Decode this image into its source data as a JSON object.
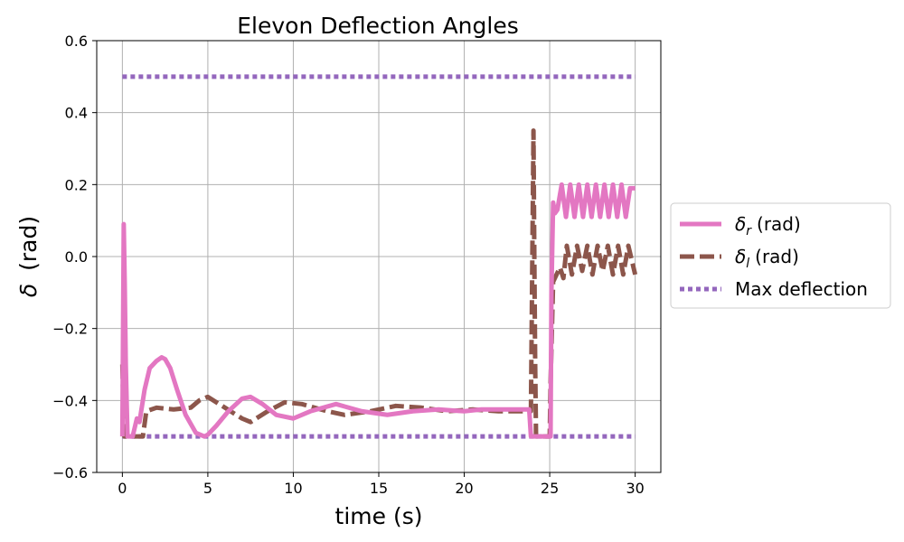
{
  "chart_data": {
    "type": "line",
    "title": "Elevon Deflection Angles",
    "xlabel": "time (s)",
    "ylabel_symbol": "δ",
    "ylabel_unit": "(rad)",
    "xlim": [
      -1.5,
      31.5
    ],
    "ylim": [
      -0.6,
      0.6
    ],
    "x_ticks": [
      0,
      5,
      10,
      15,
      20,
      25,
      30
    ],
    "y_ticks": [
      -0.6,
      -0.4,
      -0.2,
      0.0,
      0.2,
      0.4,
      0.6
    ],
    "x_tick_labels": [
      "0",
      "5",
      "10",
      "15",
      "20",
      "25",
      "30"
    ],
    "y_tick_labels": [
      "−0.6",
      "−0.4",
      "−0.2",
      "0.0",
      "0.2",
      "0.4",
      "0.6"
    ],
    "grid": true,
    "legend_position": "outside-right",
    "series": [
      {
        "symbol": "δ",
        "subscript": "r",
        "unit": "(rad)",
        "style": "solid",
        "color": "#e377c2",
        "x": [
          0.0,
          0.08,
          0.14,
          0.2,
          0.3,
          0.45,
          0.6,
          0.75,
          0.85,
          1.0,
          1.1,
          1.3,
          1.6,
          2.0,
          2.3,
          2.5,
          2.8,
          3.2,
          3.7,
          4.3,
          4.8,
          5.0,
          5.5,
          6.2,
          7.0,
          7.5,
          8.2,
          9.0,
          10.0,
          11.0,
          12.5,
          14.0,
          15.5,
          17.0,
          18.5,
          20.0,
          21.0,
          22.5,
          23.8,
          23.9,
          24.0,
          24.2,
          25.05,
          25.1,
          25.2,
          25.3,
          25.45,
          25.7,
          25.95,
          26.2,
          26.45,
          26.7,
          26.95,
          27.2,
          27.45,
          27.7,
          27.95,
          28.2,
          28.45,
          28.7,
          28.95,
          29.2,
          29.45,
          29.7,
          30.0
        ],
        "y": [
          -0.5,
          0.09,
          -0.08,
          -0.3,
          -0.5,
          -0.5,
          -0.5,
          -0.47,
          -0.45,
          -0.46,
          -0.43,
          -0.37,
          -0.31,
          -0.29,
          -0.28,
          -0.285,
          -0.31,
          -0.37,
          -0.44,
          -0.49,
          -0.5,
          -0.495,
          -0.47,
          -0.43,
          -0.395,
          -0.39,
          -0.41,
          -0.44,
          -0.45,
          -0.43,
          -0.41,
          -0.43,
          -0.44,
          -0.43,
          -0.425,
          -0.43,
          -0.425,
          -0.425,
          -0.425,
          -0.5,
          -0.5,
          -0.5,
          -0.5,
          -0.1,
          0.15,
          0.12,
          0.13,
          0.2,
          0.11,
          0.2,
          0.11,
          0.2,
          0.11,
          0.2,
          0.11,
          0.2,
          0.11,
          0.2,
          0.11,
          0.2,
          0.11,
          0.2,
          0.11,
          0.19,
          0.19
        ]
      },
      {
        "symbol": "δ",
        "subscript": "l",
        "unit": "(rad)",
        "style": "dashed",
        "color": "#8c564b",
        "x": [
          0.0,
          0.05,
          0.12,
          0.2,
          0.5,
          1.0,
          1.2,
          1.4,
          2.0,
          3.0,
          4.0,
          4.5,
          5.0,
          6.0,
          7.0,
          7.5,
          8.5,
          9.5,
          10.5,
          12.0,
          13.0,
          14.5,
          16.0,
          17.5,
          19.0,
          20.5,
          22.0,
          23.5,
          23.9,
          24.05,
          24.1,
          24.15,
          24.2,
          24.3,
          25.0,
          25.05,
          25.2,
          25.3,
          25.4,
          25.6,
          25.8,
          26.0,
          26.3,
          26.6,
          26.9,
          27.2,
          27.5,
          27.8,
          28.1,
          28.4,
          28.7,
          29.0,
          29.3,
          29.6,
          30.0
        ],
        "y": [
          -0.3,
          -0.4,
          -0.5,
          -0.5,
          -0.5,
          -0.5,
          -0.5,
          -0.43,
          -0.42,
          -0.425,
          -0.42,
          -0.4,
          -0.39,
          -0.42,
          -0.45,
          -0.46,
          -0.43,
          -0.405,
          -0.41,
          -0.43,
          -0.44,
          -0.43,
          -0.415,
          -0.42,
          -0.43,
          -0.425,
          -0.43,
          -0.43,
          -0.43,
          0.35,
          0.0,
          -0.3,
          -0.5,
          -0.5,
          -0.5,
          -0.35,
          -0.07,
          -0.06,
          -0.05,
          -0.03,
          -0.06,
          0.03,
          -0.05,
          0.03,
          -0.04,
          0.03,
          -0.05,
          0.03,
          -0.04,
          0.03,
          -0.05,
          0.03,
          -0.05,
          0.03,
          -0.05
        ]
      },
      {
        "label": "Max deflection",
        "style": "dotted",
        "color": "#9467bd",
        "x": [
          0,
          30
        ],
        "y_upper": 0.5,
        "y_lower": -0.5
      }
    ]
  }
}
